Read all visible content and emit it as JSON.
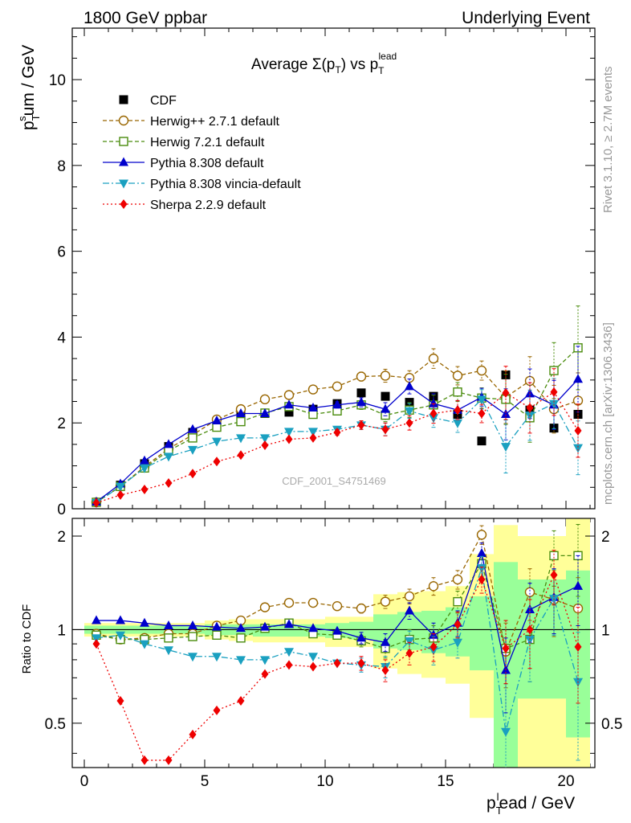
{
  "header": {
    "left": "1800 GeV ppbar",
    "right": "Underlying Event"
  },
  "side_labels": {
    "rivet": "Rivet 3.1.10, ≥ 2.7M events",
    "mcplots": "mcplots.cern.ch [arXiv:1306.3436]"
  },
  "watermark": "CDF_2001_S4751469",
  "title": {
    "main": "Average Σ(p",
    "sub_t": "T",
    "mid": ") vs p",
    "sup": "lead",
    "sub": "T"
  },
  "ylabel_main": {
    "p": "p",
    "sup": "s",
    "sub": "T",
    "rest": "um / GeV"
  },
  "ylabel_ratio": "Ratio to CDF",
  "xlabel": {
    "p": "p",
    "sup": "l",
    "sub": "T",
    "rest": "ead / GeV"
  },
  "colors": {
    "cdf": "#000000",
    "herwigpp": "#996600",
    "herwig7": "#4a8c0d",
    "pythia": "#0000cc",
    "vincia": "#1aa0c0",
    "sherpa": "#ee0000",
    "band_yellow": "#ffff99",
    "band_green": "#99ff99"
  },
  "chart_data": {
    "type": "scatter",
    "x": [
      0.5,
      1.5,
      2.5,
      3.5,
      4.5,
      5.5,
      6.5,
      7.5,
      8.5,
      9.5,
      10.5,
      11.5,
      12.5,
      13.5,
      14.5,
      15.5,
      16.5,
      17.5,
      18.5,
      19.5,
      20.5
    ],
    "xlim": [
      -0.5,
      21.2
    ],
    "main_ylim": [
      0,
      11.2
    ],
    "main_yticks": [
      0,
      2,
      4,
      6,
      8,
      10
    ],
    "ratio_ylim": [
      0.36,
      2.28
    ],
    "ratio_yticks": [
      0.5,
      1,
      2
    ],
    "xticks": [
      0,
      5,
      10,
      15,
      20
    ],
    "series": [
      {
        "name": "CDF",
        "key": "cdf",
        "style": "square-filled",
        "dash": "",
        "values": [
          0.15,
          0.55,
          1.05,
          1.45,
          1.78,
          2.02,
          2.18,
          2.22,
          2.25,
          2.32,
          2.45,
          2.7,
          2.62,
          2.48,
          2.62,
          2.2,
          1.58,
          3.12,
          2.3,
          1.88,
          2.2
        ],
        "ratio": [
          1,
          1,
          1,
          1,
          1,
          1,
          1,
          1,
          1,
          1,
          1,
          1,
          1,
          1,
          1,
          1,
          1,
          1,
          1,
          1,
          1
        ]
      },
      {
        "name": "Herwig++ 2.7.1 default",
        "key": "herwigpp",
        "style": "circle-open",
        "dash": "5,3",
        "values": [
          0.15,
          0.52,
          0.98,
          1.4,
          1.72,
          2.08,
          2.32,
          2.55,
          2.65,
          2.78,
          2.85,
          3.08,
          3.1,
          3.05,
          3.5,
          3.1,
          3.22,
          2.6,
          2.98,
          2.32,
          2.52
        ],
        "ratio": [
          0.97,
          0.93,
          0.94,
          0.97,
          0.97,
          1.03,
          1.07,
          1.18,
          1.22,
          1.22,
          1.19,
          1.17,
          1.23,
          1.28,
          1.38,
          1.45,
          2.02,
          0.85,
          1.32,
          1.25,
          1.17
        ],
        "ratio_err": [
          0.02,
          0.02,
          0.02,
          0.02,
          0.02,
          0.02,
          0.02,
          0.02,
          0.02,
          0.02,
          0.03,
          0.04,
          0.06,
          0.07,
          0.09,
          0.1,
          0.14,
          0.2,
          0.25,
          0.3,
          0.3
        ]
      },
      {
        "name": "Herwig 7.2.1 default",
        "key": "herwig7",
        "style": "square-open",
        "dash": "5,3",
        "values": [
          0.15,
          0.52,
          0.95,
          1.35,
          1.65,
          1.9,
          2.03,
          2.23,
          2.38,
          2.2,
          2.28,
          2.42,
          2.18,
          2.3,
          2.42,
          2.72,
          2.58,
          2.55,
          2.12,
          3.22,
          3.75
        ],
        "ratio": [
          0.96,
          0.93,
          0.93,
          0.94,
          0.95,
          0.96,
          0.94,
          1.01,
          1.05,
          0.97,
          0.96,
          0.92,
          0.87,
          0.93,
          0.94,
          1.23,
          1.63,
          0.87,
          0.93,
          1.73,
          1.73
        ],
        "ratio_err": [
          0.02,
          0.02,
          0.02,
          0.02,
          0.02,
          0.02,
          0.02,
          0.02,
          0.02,
          0.02,
          0.03,
          0.04,
          0.06,
          0.07,
          0.09,
          0.1,
          0.15,
          0.2,
          0.25,
          0.35,
          0.45
        ]
      },
      {
        "name": "Pythia 8.308 default",
        "key": "pythia",
        "style": "triangle-up",
        "dash": "",
        "values": [
          0.16,
          0.58,
          1.12,
          1.5,
          1.85,
          2.05,
          2.22,
          2.22,
          2.42,
          2.35,
          2.42,
          2.48,
          2.32,
          2.85,
          2.45,
          2.3,
          2.6,
          2.2,
          2.68,
          2.42,
          3.02
        ],
        "ratio": [
          1.07,
          1.07,
          1.05,
          1.03,
          1.03,
          1.02,
          1.01,
          1.02,
          1.04,
          1.01,
          0.99,
          0.94,
          0.91,
          1.15,
          0.96,
          1.05,
          1.76,
          0.74,
          1.16,
          1.27,
          1.38
        ],
        "ratio_err": [
          0.02,
          0.02,
          0.02,
          0.02,
          0.02,
          0.02,
          0.02,
          0.02,
          0.02,
          0.02,
          0.03,
          0.04,
          0.06,
          0.07,
          0.09,
          0.1,
          0.14,
          0.2,
          0.25,
          0.3,
          0.35
        ]
      },
      {
        "name": "Pythia 8.308 vincia-default",
        "key": "vincia",
        "style": "triangle-down",
        "dash": "8,3,2,3",
        "values": [
          0.14,
          0.52,
          0.95,
          1.22,
          1.38,
          1.57,
          1.65,
          1.65,
          1.8,
          1.8,
          1.85,
          1.95,
          1.85,
          2.28,
          2.12,
          2.0,
          2.55,
          1.45,
          2.18,
          2.45,
          1.42
        ],
        "ratio": [
          0.94,
          0.96,
          0.9,
          0.86,
          0.82,
          0.82,
          0.8,
          0.8,
          0.85,
          0.82,
          0.78,
          0.77,
          0.76,
          0.92,
          0.86,
          0.91,
          1.58,
          0.47,
          0.93,
          1.26,
          0.68
        ],
        "ratio_err": [
          0.02,
          0.02,
          0.02,
          0.02,
          0.02,
          0.02,
          0.02,
          0.02,
          0.02,
          0.02,
          0.03,
          0.04,
          0.06,
          0.07,
          0.09,
          0.1,
          0.14,
          0.2,
          0.25,
          0.3,
          0.3
        ]
      },
      {
        "name": "Sherpa 2.2.9 default",
        "key": "sherpa",
        "style": "diamond",
        "dash": "2,3",
        "values": [
          0.14,
          0.32,
          0.45,
          0.6,
          0.82,
          1.1,
          1.25,
          1.48,
          1.62,
          1.65,
          1.78,
          1.95,
          1.85,
          2.0,
          2.22,
          2.3,
          2.22,
          2.7,
          2.35,
          2.72,
          1.82
        ],
        "ratio": [
          0.9,
          0.59,
          0.38,
          0.38,
          0.46,
          0.55,
          0.59,
          0.72,
          0.77,
          0.76,
          0.78,
          0.78,
          0.74,
          0.84,
          0.88,
          1.04,
          1.45,
          0.87,
          1.0,
          1.5,
          0.88
        ],
        "ratio_err": [
          0.02,
          0.02,
          0.02,
          0.02,
          0.02,
          0.02,
          0.02,
          0.02,
          0.02,
          0.02,
          0.03,
          0.04,
          0.06,
          0.07,
          0.09,
          0.1,
          0.14,
          0.2,
          0.25,
          0.3,
          0.3
        ]
      }
    ],
    "ratio_bands": [
      {
        "x0": 0,
        "x1": 1,
        "y_lo": 0.95,
        "y_hi": 1.05,
        "g_lo": 0.97,
        "g_hi": 1.03
      },
      {
        "x0": 1,
        "x1": 2,
        "y_lo": 0.95,
        "y_hi": 1.05,
        "g_lo": 0.97,
        "g_hi": 1.03
      },
      {
        "x0": 2,
        "x1": 3,
        "y_lo": 0.95,
        "y_hi": 1.05,
        "g_lo": 0.97,
        "g_hi": 1.03
      },
      {
        "x0": 3,
        "x1": 4,
        "y_lo": 0.95,
        "y_hi": 1.05,
        "g_lo": 0.97,
        "g_hi": 1.03
      },
      {
        "x0": 4,
        "x1": 5,
        "y_lo": 0.95,
        "y_hi": 1.05,
        "g_lo": 0.97,
        "g_hi": 1.03
      },
      {
        "x0": 5,
        "x1": 6,
        "y_lo": 0.93,
        "y_hi": 1.07,
        "g_lo": 0.96,
        "g_hi": 1.04
      },
      {
        "x0": 6,
        "x1": 7,
        "y_lo": 0.92,
        "y_hi": 1.08,
        "g_lo": 0.96,
        "g_hi": 1.04
      },
      {
        "x0": 7,
        "x1": 8,
        "y_lo": 0.91,
        "y_hi": 1.08,
        "g_lo": 0.95,
        "g_hi": 1.04
      },
      {
        "x0": 8,
        "x1": 9,
        "y_lo": 0.91,
        "y_hi": 1.08,
        "g_lo": 0.95,
        "g_hi": 1.04
      },
      {
        "x0": 9,
        "x1": 10,
        "y_lo": 0.91,
        "y_hi": 1.08,
        "g_lo": 0.95,
        "g_hi": 1.04
      },
      {
        "x0": 10,
        "x1": 11,
        "y_lo": 0.88,
        "y_hi": 1.1,
        "g_lo": 0.94,
        "g_hi": 1.05
      },
      {
        "x0": 11,
        "x1": 12,
        "y_lo": 0.88,
        "y_hi": 1.1,
        "g_lo": 0.93,
        "g_hi": 1.06
      },
      {
        "x0": 12,
        "x1": 13,
        "y_lo": 0.75,
        "y_hi": 1.3,
        "g_lo": 0.87,
        "g_hi": 1.12
      },
      {
        "x0": 13,
        "x1": 14,
        "y_lo": 0.72,
        "y_hi": 1.32,
        "g_lo": 0.86,
        "g_hi": 1.14
      },
      {
        "x0": 14,
        "x1": 15,
        "y_lo": 0.7,
        "y_hi": 1.33,
        "g_lo": 0.84,
        "g_hi": 1.15
      },
      {
        "x0": 15,
        "x1": 16,
        "y_lo": 0.67,
        "y_hi": 1.38,
        "g_lo": 0.82,
        "g_hi": 1.18
      },
      {
        "x0": 16,
        "x1": 17,
        "y_lo": 0.52,
        "y_hi": 1.75,
        "g_lo": 0.74,
        "g_hi": 1.28
      },
      {
        "x0": 17,
        "x1": 18,
        "y_lo": 0.36,
        "y_hi": 2.17,
        "g_lo": 0.36,
        "g_hi": 1.65
      },
      {
        "x0": 18,
        "x1": 19,
        "y_lo": 0.36,
        "y_hi": 2.0,
        "g_lo": 0.6,
        "g_hi": 1.45
      },
      {
        "x0": 19,
        "x1": 20,
        "y_lo": 0.36,
        "y_hi": 2.0,
        "g_lo": 0.6,
        "g_hi": 1.45
      },
      {
        "x0": 20,
        "x1": 21,
        "y_lo": 0.36,
        "y_hi": 2.28,
        "g_lo": 0.45,
        "g_hi": 1.55
      }
    ]
  }
}
